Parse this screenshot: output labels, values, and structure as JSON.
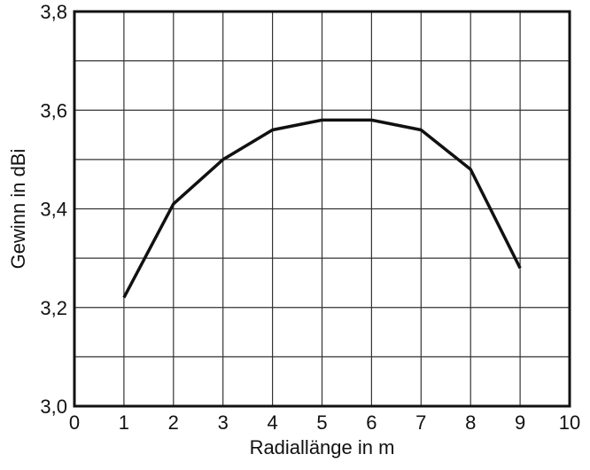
{
  "chart_data": {
    "type": "line",
    "title": "",
    "xlabel": "Radiallänge in m",
    "ylabel": "Gewinn in dBi",
    "xlim": [
      0,
      10
    ],
    "ylim": [
      3.0,
      3.8
    ],
    "x_ticks": [
      0,
      1,
      2,
      3,
      4,
      5,
      6,
      7,
      8,
      9,
      10
    ],
    "x_tick_labels": [
      "0",
      "1",
      "2",
      "3",
      "4",
      "5",
      "6",
      "7",
      "8",
      "9",
      "10"
    ],
    "y_tick_labels_major": [
      "3,0",
      "3,2",
      "3,4",
      "3,6",
      "3,8"
    ],
    "y_major_ticks": [
      3.0,
      3.2,
      3.4,
      3.6,
      3.8
    ],
    "y_grid_step": 0.1,
    "grid": true,
    "series": [
      {
        "x": [
          1,
          2,
          3,
          4,
          5,
          6,
          7,
          8,
          9
        ],
        "y": [
          3.22,
          3.41,
          3.5,
          3.56,
          3.58,
          3.58,
          3.56,
          3.48,
          3.28
        ],
        "color": "#111111"
      }
    ]
  }
}
